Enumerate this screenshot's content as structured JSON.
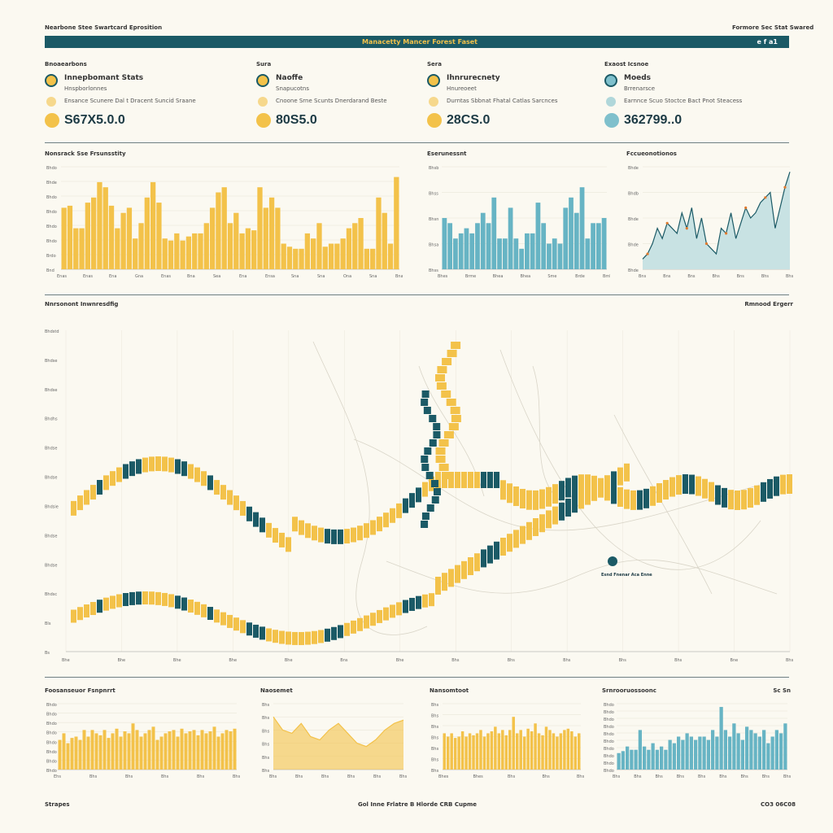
{
  "page": {
    "top_left": "Nearbone Stee Swartcard Eprosition",
    "top_right": "Formore Sec Stat Swared",
    "title": "Manacetty Mancer Forest Faset",
    "title_right": "e f a1",
    "footer_left": "Strapes",
    "footer_center": "Gol Inne  Frlatre  B Hlorde  CRB  Cupme",
    "footer_right": "CO3 06C08"
  },
  "stats": [
    {
      "section": "Bnoaearbons",
      "name": "Innepbomant Stats",
      "sub": "Hnspborlonnes",
      "desc": "Ensance Scunere Dal t Dracent Suncid Sraane",
      "value": "S67X5.0.0",
      "icon": "coin-icon",
      "color": "#f3c24a"
    },
    {
      "section": "Sura",
      "name": "Naoffe",
      "sub": "Snapucotns",
      "desc": "Cnoone Srne Scunts Dnerdarand Beste",
      "value": "80S5.0",
      "icon": "car-icon",
      "color": "#f3c24a"
    },
    {
      "section": "Sera",
      "name": "Ihnrurecnety",
      "sub": "Hnureoeet",
      "desc": "Durntas Sbbnat Fhatal Catlas Sarcnces",
      "value": "28CS.0",
      "icon": "tree-icon",
      "color": "#f3c24a"
    },
    {
      "section": "Exaost Icsnoe",
      "name": "Moeds",
      "sub": "Brrenarsce",
      "desc": "Earnnce Scuo Stoctce Bact Pnot Steacess",
      "value": "362799..0",
      "icon": "globe-icon",
      "color": "#7fc0cc"
    }
  ],
  "colors": {
    "gold": "#f3c24a",
    "teal": "#1b5a66",
    "lightblue": "#67b4c4",
    "paleblue": "#c8e2e3",
    "orange": "#e07a2e"
  },
  "chart_data": [
    {
      "type": "bar",
      "title": "Nonsrack Sse Frsunsstity",
      "color": "#f3c24a",
      "yticks": [
        "Bhdo",
        "Bhde",
        "Bhdo",
        "Bhdo",
        "Bhdo",
        "Bhdo",
        "Brdo",
        "Bnd"
      ],
      "xticks": [
        "Enas",
        "Enas",
        "Ena",
        "Gna",
        "Enas",
        "Bna",
        "Sea",
        "Ena",
        "Ensa",
        "Sna",
        "Sna",
        "Ona",
        "Sna",
        "Bnas"
      ],
      "values": [
        60,
        62,
        40,
        40,
        65,
        70,
        85,
        80,
        62,
        40,
        55,
        60,
        30,
        45,
        70,
        85,
        65,
        30,
        28,
        35,
        28,
        32,
        35,
        35,
        45,
        60,
        75,
        80,
        45,
        55,
        35,
        40,
        38,
        80,
        60,
        70,
        60,
        25,
        22,
        20,
        20,
        35,
        30,
        45,
        22,
        25,
        25,
        30,
        40,
        45,
        50,
        20,
        20,
        70,
        55,
        25,
        90
      ]
    },
    {
      "type": "bar",
      "title": "Eserunessnt",
      "color": "#67b4c4",
      "yticks": [
        "Bhsb",
        "Bhss",
        "Bhsn",
        "Bhsa",
        "Bhss"
      ],
      "xticks": [
        "Bhes",
        "Brme",
        "Bhea",
        "Bhea",
        "Sme",
        "Brde",
        "Bmh"
      ],
      "values": [
        50,
        45,
        30,
        35,
        40,
        35,
        45,
        55,
        45,
        70,
        30,
        30,
        60,
        30,
        20,
        35,
        35,
        65,
        45,
        25,
        30,
        25,
        60,
        70,
        55,
        80,
        30,
        45,
        45,
        50
      ]
    },
    {
      "type": "area",
      "title": "Fccueonotionos",
      "color": "#1b5a66",
      "fill": "#c8e2e3",
      "yticks": [
        "Bhde",
        "Bhdb",
        "Bhde",
        "Bhde",
        "Bhde"
      ],
      "xticks": [
        "Bns",
        "Bns",
        "Bns",
        "Bhs",
        "Bns",
        "Bhs",
        "Bhs"
      ],
      "values": [
        10,
        15,
        25,
        40,
        30,
        45,
        40,
        35,
        55,
        40,
        60,
        30,
        50,
        25,
        20,
        15,
        40,
        35,
        55,
        30,
        45,
        60,
        50,
        55,
        65,
        70,
        75,
        40,
        60,
        80,
        95
      ]
    },
    {
      "type": "bar",
      "title": "Nnrsonont Inwnresdfig",
      "title_right": "Rmnood Ergerr",
      "yticks": [
        "Bhdstd",
        "Bhdse",
        "Bhdse",
        "Bhdhs",
        "Bhdse",
        "Bhdse",
        "Bhdsie",
        "Bhdse",
        "Bhdse",
        "Bhdsc",
        "Bls",
        "Bs"
      ],
      "xticks": [
        "Bhe",
        "Bhe",
        "Bhe",
        "Bhe",
        "Bhe",
        "Bns",
        "Bhe",
        "Bhs",
        "Bhs",
        "Bhs",
        "Bhs",
        "Bhs",
        "Bne",
        "Bhs"
      ],
      "marker": {
        "label": "Esnd Fnenar Aca Enne"
      }
    },
    {
      "type": "bar",
      "title": "Foosanseuor Fsnpnrrt",
      "color": "#f3c24a",
      "yticks": [
        "Bhdo",
        "Bhdo",
        "Bhdo",
        "Bhdo",
        "Bhdo",
        "Bhdo",
        "Bhdo",
        "Bhdo"
      ],
      "xticks": [
        "Ehs",
        "Bhs",
        "Bhs",
        "Bhs",
        "Bhs",
        "Bhs"
      ],
      "values": [
        45,
        55,
        40,
        48,
        50,
        45,
        60,
        50,
        60,
        55,
        52,
        60,
        48,
        55,
        62,
        50,
        58,
        55,
        70,
        60,
        50,
        55,
        60,
        65,
        45,
        50,
        55,
        58,
        60,
        50,
        62,
        55,
        58,
        60,
        52,
        60,
        55,
        58,
        65,
        50,
        55,
        60,
        58,
        62
      ]
    },
    {
      "type": "area",
      "title": "Naosemet",
      "color": "#f3c24a",
      "yticks": [
        "Bhs",
        "Bhs",
        "Bhs",
        "Bhs",
        "Bhs",
        "Bhs"
      ],
      "xticks": [
        "Bhs",
        "Bhs",
        "Bhs",
        "Bhs",
        "Bhs",
        "Bhs"
      ],
      "values": [
        80,
        60,
        55,
        70,
        50,
        45,
        60,
        70,
        55,
        40,
        35,
        45,
        60,
        70,
        75
      ]
    },
    {
      "type": "bar",
      "title": "Nansomtoot",
      "color": "#f3c24a",
      "yticks": [
        "Bhs",
        "Bhs",
        "Bhs",
        "Bhs",
        "Bhs",
        "Bhs",
        "Bhs"
      ],
      "xticks": [
        "Bhes",
        "Bhes",
        "Bhs",
        "Bhs",
        "Bhs"
      ],
      "values": [
        55,
        50,
        55,
        48,
        50,
        58,
        50,
        55,
        52,
        55,
        60,
        50,
        55,
        58,
        65,
        55,
        60,
        52,
        60,
        80,
        55,
        60,
        50,
        62,
        58,
        70,
        55,
        52,
        65,
        60,
        55,
        50,
        55,
        60,
        62,
        58,
        50,
        55
      ]
    },
    {
      "type": "bar",
      "title": "Srnrooruossoonc",
      "title_right": "Sc Sn",
      "color": "#67b4c4",
      "yticks": [
        "Bhdo",
        "Bhdo",
        "Bhdo",
        "Bhdo",
        "Bhdo",
        "Bhdo",
        "Bhdo",
        "Bhdo",
        "Bhdo",
        "Bhdo"
      ],
      "xticks": [
        "Bhs",
        "Bhs",
        "Bhs",
        "Bhs",
        "Bhs",
        "Bhs",
        "Bhs",
        "Bhs",
        "Bhs"
      ],
      "values": [
        25,
        28,
        35,
        30,
        30,
        60,
        35,
        30,
        40,
        30,
        35,
        30,
        45,
        40,
        50,
        45,
        55,
        50,
        45,
        50,
        50,
        45,
        60,
        50,
        95,
        60,
        50,
        70,
        55,
        45,
        65,
        60,
        55,
        50,
        60,
        40,
        50,
        60,
        55,
        70
      ]
    }
  ]
}
